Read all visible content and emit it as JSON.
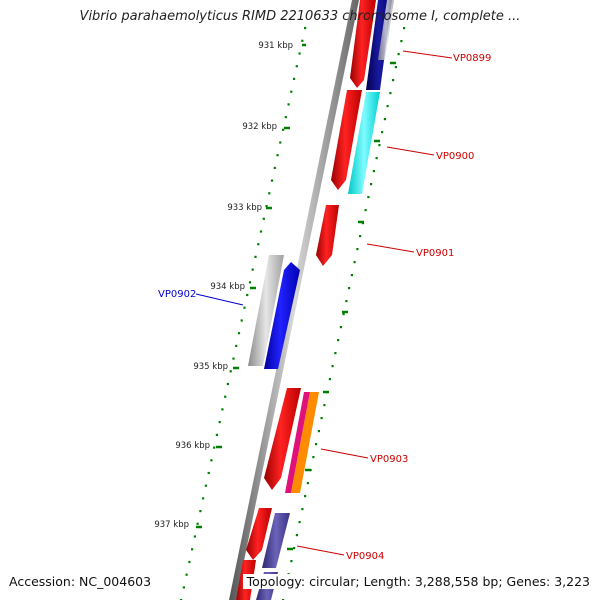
{
  "title": "Vibrio parahaemolyticus RIMD 2210633 chromosome I, complete ...",
  "footer": {
    "accession": "Accession: NC_004603",
    "summary": "Topology: circular; Length: 3,288,558 bp; Genes: 3,223"
  },
  "ticks": [
    "931 kbp",
    "932 kbp",
    "933 kbp",
    "934 kbp",
    "935 kbp",
    "936 kbp",
    "937 kbp"
  ],
  "genes": [
    {
      "label": "VP0899",
      "color": "#cc0000",
      "strand": "forward"
    },
    {
      "label": "VP0900",
      "color": "#cc0000",
      "strand": "forward"
    },
    {
      "label": "VP0901",
      "color": "#cc0000",
      "strand": "forward"
    },
    {
      "label": "VP0902",
      "color": "#0000cc",
      "strand": "reverse"
    },
    {
      "label": "VP0903",
      "color": "#cc0000",
      "strand": "forward"
    },
    {
      "label": "VP0904",
      "color": "#cc0000",
      "strand": "forward"
    }
  ],
  "colors": {
    "forward_cds": "#ff0000",
    "reverse_cds": "#0000ff",
    "backbone": "#888888",
    "tick": "#008000",
    "cog_navy": "#000080",
    "cog_cyan": "#00ffff",
    "cog_magenta": "#ff1493",
    "cog_orange": "#ff8c00",
    "cog_purple": "#483d8b",
    "cog_gray": "#b0b0b0"
  }
}
